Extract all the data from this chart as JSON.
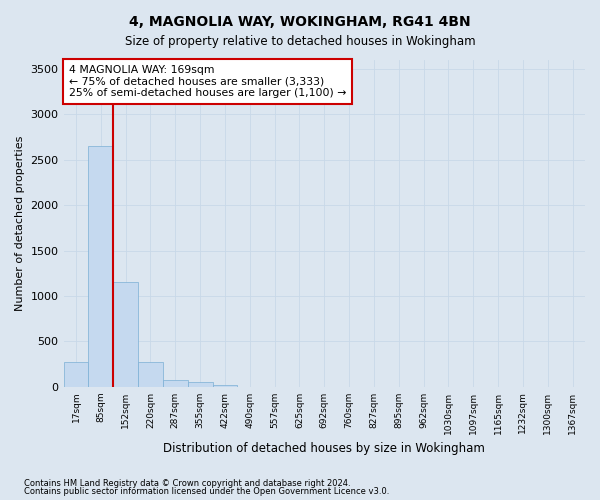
{
  "title": "4, MAGNOLIA WAY, WOKINGHAM, RG41 4BN",
  "subtitle": "Size of property relative to detached houses in Wokingham",
  "xlabel": "Distribution of detached houses by size in Wokingham",
  "ylabel": "Number of detached properties",
  "footnote1": "Contains HM Land Registry data © Crown copyright and database right 2024.",
  "footnote2": "Contains public sector information licensed under the Open Government Licence v3.0.",
  "bin_labels": [
    "17sqm",
    "85sqm",
    "152sqm",
    "220sqm",
    "287sqm",
    "355sqm",
    "422sqm",
    "490sqm",
    "557sqm",
    "625sqm",
    "692sqm",
    "760sqm",
    "827sqm",
    "895sqm",
    "962sqm",
    "1030sqm",
    "1097sqm",
    "1165sqm",
    "1232sqm",
    "1300sqm",
    "1367sqm"
  ],
  "bar_values": [
    275,
    2650,
    1150,
    275,
    75,
    50,
    20,
    0,
    0,
    0,
    0,
    0,
    0,
    0,
    0,
    0,
    0,
    0,
    0,
    0,
    0
  ],
  "bar_color": "#c5d9ef",
  "bar_edge_color": "#7bafd4",
  "property_line_x": 1.5,
  "property_line_color": "#cc0000",
  "annotation_line1": "4 MAGNOLIA WAY: 169sqm",
  "annotation_line2": "← 75% of detached houses are smaller (3,333)",
  "annotation_line3": "25% of semi-detached houses are larger (1,100) →",
  "annotation_box_color": "#cc0000",
  "ylim": [
    0,
    3600
  ],
  "yticks": [
    0,
    500,
    1000,
    1500,
    2000,
    2500,
    3000,
    3500
  ],
  "bg_color": "#dce6f0",
  "plot_bg_color": "#ffffff",
  "grid_color": "#c8d8e8",
  "figsize": [
    6.0,
    5.0
  ],
  "dpi": 100
}
